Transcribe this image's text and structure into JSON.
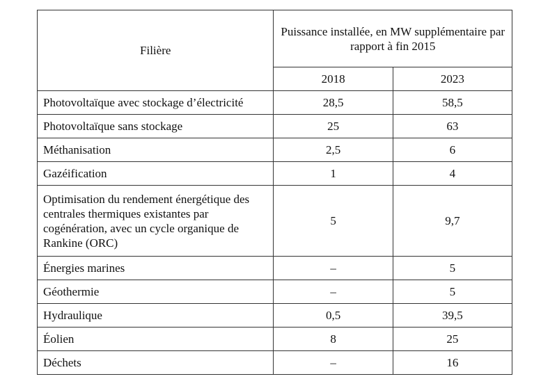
{
  "table": {
    "header": {
      "filiere": "Filière",
      "puissance": "Puissance installée, en MW supplémentaire par rapport à fin 2015",
      "year_2018": "2018",
      "year_2023": "2023"
    },
    "rows": [
      {
        "filiere": "Photovoltaïque avec stockage d’électricité",
        "v2018": "28,5",
        "v2023": "58,5"
      },
      {
        "filiere": "Photovoltaïque sans stockage",
        "v2018": "25",
        "v2023": "63"
      },
      {
        "filiere": "Méthanisation",
        "v2018": "2,5",
        "v2023": "6"
      },
      {
        "filiere": "Gazéification",
        "v2018": "1",
        "v2023": "4"
      },
      {
        "filiere": "Optimisation du rendement énergétique des centrales thermiques existantes par cogénération, avec un cycle organique de Rankine (ORC)",
        "v2018": "5",
        "v2023": "9,7"
      },
      {
        "filiere": "Énergies marines",
        "v2018": "–",
        "v2023": "5"
      },
      {
        "filiere": "Géothermie",
        "v2018": "–",
        "v2023": "5"
      },
      {
        "filiere": "Hydraulique",
        "v2018": "0,5",
        "v2023": "39,5"
      },
      {
        "filiere": "Éolien",
        "v2018": "8",
        "v2023": "25"
      },
      {
        "filiere": "Déchets",
        "v2018": "–",
        "v2023": "16"
      }
    ]
  }
}
